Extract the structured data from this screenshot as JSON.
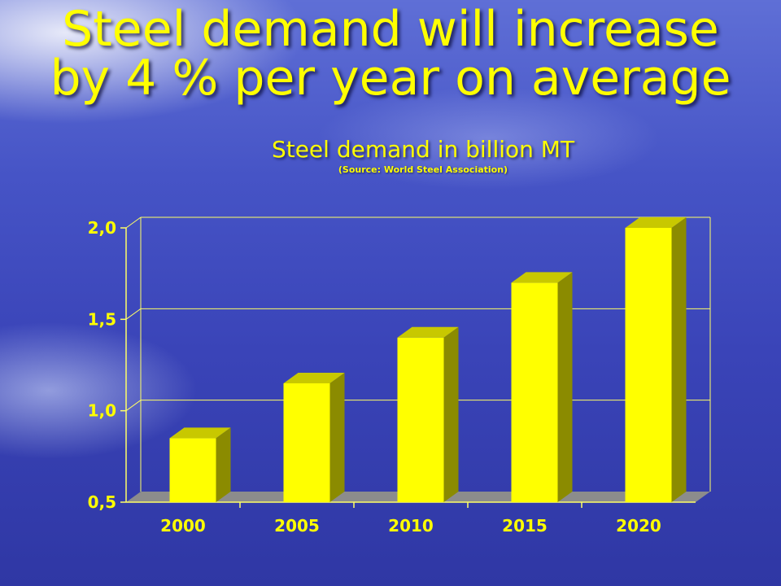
{
  "title_line1": "Steel demand will increase",
  "title_line2": "by 4 % per year on average",
  "subtitle": "Steel demand in billion MT",
  "source": "(Source: World Steel Association)",
  "colors": {
    "text": "#ffff00",
    "bar_front": "#ffff00",
    "bar_side": "#8b8b00",
    "bar_top": "#c8c800",
    "grid": "#ffff66",
    "floor": "#8c8c8c"
  },
  "chart_data": {
    "type": "bar",
    "title": "Steel demand in billion MT",
    "categories": [
      "2000",
      "2005",
      "2010",
      "2015",
      "2020"
    ],
    "values": [
      0.85,
      1.15,
      1.4,
      1.7,
      2.0
    ],
    "ylim": [
      0.5,
      2.0
    ],
    "yticks": [
      0.5,
      1.0,
      1.5,
      2.0
    ],
    "ytick_labels": [
      "0,5",
      "1,0",
      "1,5",
      "2,0"
    ],
    "grid": true,
    "legend": "none",
    "style": "3d"
  }
}
